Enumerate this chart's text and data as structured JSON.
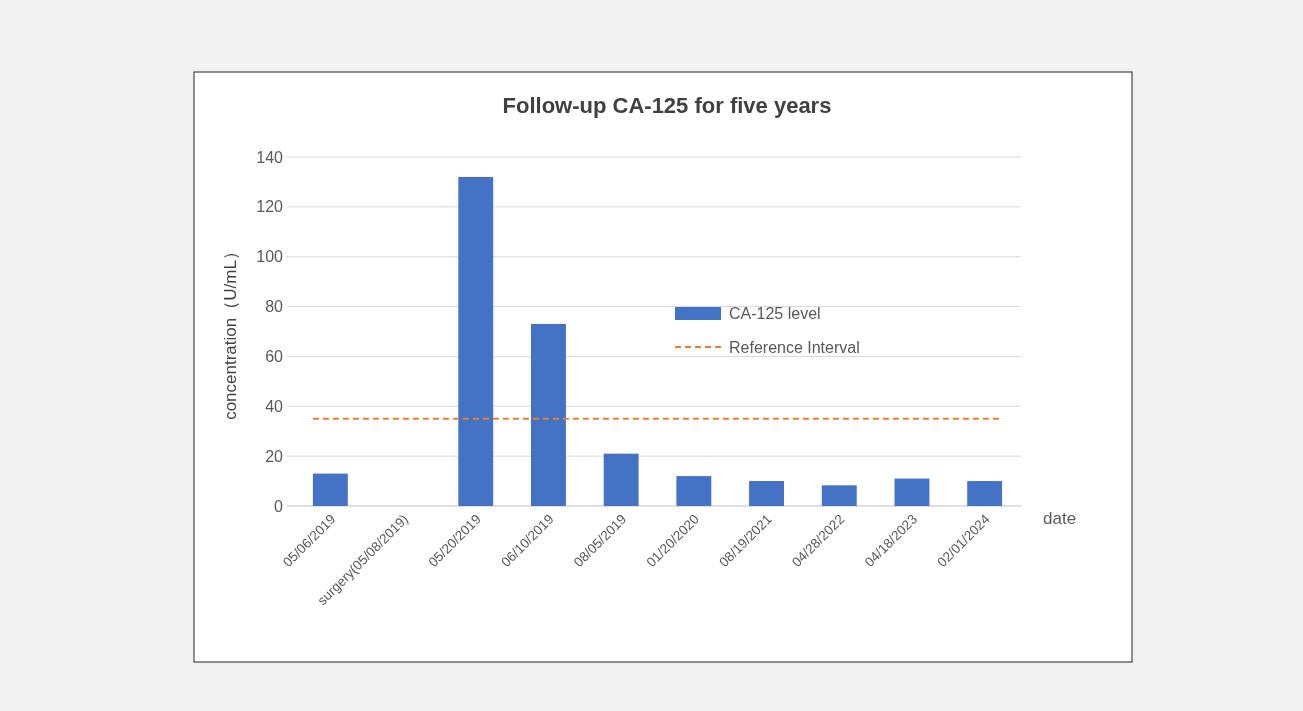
{
  "chart_data": {
    "type": "bar",
    "title": "Follow-up CA-125 for five years",
    "xlabel": "date",
    "ylabel": "concentration（U/mL）",
    "categories": [
      "05/06/2019",
      "surgery(05/08/2019)",
      "05/20/2019",
      "06/10/2019",
      "08/05/2019",
      "01/20/2020",
      "08/19/2021",
      "04/28/2022",
      "04/18/2023",
      "02/01/2024"
    ],
    "series": [
      {
        "name": "CA-125 level",
        "color": "#4472c4",
        "values": [
          13,
          null,
          132,
          73,
          21,
          12,
          10,
          8.3,
          11,
          10
        ]
      }
    ],
    "ref_lines": [
      {
        "axis": "y",
        "value": 35,
        "label": "Reference Interval",
        "color": "#ed7d31",
        "line_style": "dashed"
      }
    ],
    "ylim": [
      0,
      140
    ],
    "yticks": [
      0,
      20,
      40,
      60,
      80,
      100,
      120,
      140
    ],
    "grid": "y",
    "legend": "right"
  }
}
